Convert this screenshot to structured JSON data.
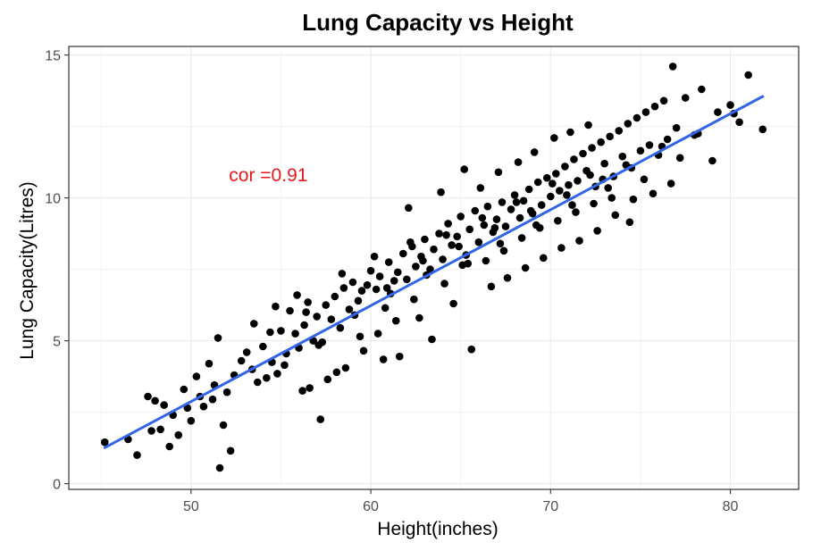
{
  "chart_data": {
    "type": "scatter",
    "title": "Lung Capacity vs Height",
    "xlabel": "Height(inches)",
    "ylabel": "Lung Capacity(Litres)",
    "xlim": [
      43.2,
      83.8
    ],
    "ylim": [
      -0.2,
      15.3
    ],
    "x_ticks": [
      50,
      60,
      70,
      80
    ],
    "y_ticks": [
      0,
      5,
      10,
      15
    ],
    "grid": true,
    "annotation": {
      "text": "cor =0.91",
      "x": 54.3,
      "y": 10.8,
      "color": "#e41a1c"
    },
    "fit_line": {
      "x": [
        45.2,
        81.8
      ],
      "y": [
        1.26,
        13.55
      ],
      "color": "#3366e6"
    },
    "point_color": "#000000",
    "series": [
      {
        "x": [
          45.2,
          47.0,
          46.5,
          47.6,
          48.0,
          48.3,
          48.8,
          49.0,
          49.3,
          49.6,
          50.0,
          50.3,
          50.7,
          51.0,
          51.2,
          51.5,
          51.6,
          51.8,
          52.0,
          52.2,
          47.8,
          48.5,
          49.8,
          50.5,
          51.3,
          52.4,
          52.8,
          53.1,
          53.4,
          53.7,
          54.0,
          54.2,
          54.5,
          54.8,
          55.0,
          55.3,
          55.5,
          55.8,
          56.0,
          56.3,
          56.5,
          56.8,
          57.0,
          57.3,
          57.5,
          57.8,
          58.0,
          58.3,
          58.5,
          58.8,
          59.0,
          59.3,
          59.5,
          59.8,
          60.0,
          60.3,
          60.5,
          60.8,
          61.0,
          61.3,
          61.5,
          61.8,
          62.0,
          62.3,
          62.5,
          62.8,
          63.0,
          63.3,
          63.5,
          63.8,
          64.0,
          64.3,
          64.5,
          64.8,
          65.0,
          65.3,
          65.5,
          65.8,
          66.0,
          66.3,
          66.5,
          66.8,
          67.0,
          67.3,
          67.5,
          67.8,
          68.0,
          68.3,
          68.5,
          68.8,
          69.0,
          69.3,
          69.5,
          69.8,
          70.0,
          70.3,
          70.5,
          70.8,
          71.0,
          71.3,
          71.5,
          71.8,
          72.0,
          72.3,
          72.5,
          72.8,
          73.0,
          73.3,
          73.5,
          73.8,
          74.0,
          74.3,
          74.5,
          74.8,
          75.0,
          75.3,
          75.5,
          75.8,
          76.0,
          76.3,
          76.5,
          76.8,
          77.0,
          77.5,
          78.0,
          78.4,
          79.0,
          79.3,
          80.0,
          80.5,
          81.0,
          81.8,
          53.5,
          54.7,
          55.9,
          56.6,
          57.2,
          58.1,
          59.4,
          60.7,
          61.6,
          62.7,
          63.4,
          64.6,
          65.6,
          66.7,
          67.6,
          68.6,
          69.6,
          70.6,
          71.6,
          72.6,
          73.6,
          74.6,
          75.7,
          76.7,
          62.1,
          63.9,
          65.2,
          66.1,
          67.1,
          68.2,
          69.1,
          70.2,
          71.1,
          72.1,
          56.2,
          57.6,
          58.6,
          59.6,
          60.4,
          61.4,
          62.4,
          64.1,
          65.1,
          66.4,
          67.4,
          68.4,
          69.4,
          70.4,
          71.4,
          72.4,
          73.4,
          74.4,
          55.2,
          57.1,
          59.1,
          61.1,
          63.1,
          65.4,
          67.2,
          69.2,
          71.2,
          73.2,
          75.2,
          77.2,
          54.4,
          56.4,
          58.4,
          60.2,
          62.2,
          64.2,
          66.2,
          68.1,
          70.1,
          72.2,
          74.2,
          76.2,
          78.2,
          80.2,
          60.9,
          62.9,
          64.9,
          66.9,
          68.9,
          70.9,
          72.9
        ],
        "y": [
          1.45,
          1.0,
          1.55,
          3.05,
          2.9,
          1.9,
          1.3,
          2.4,
          1.7,
          3.3,
          2.2,
          3.75,
          2.7,
          4.2,
          2.95,
          5.1,
          0.55,
          2.05,
          3.2,
          1.15,
          1.85,
          2.75,
          2.65,
          3.05,
          3.45,
          3.8,
          4.3,
          4.6,
          4.0,
          3.55,
          4.8,
          3.7,
          4.25,
          3.85,
          5.35,
          4.55,
          6.05,
          5.25,
          4.75,
          5.55,
          6.35,
          5.0,
          5.85,
          4.95,
          6.25,
          5.75,
          6.55,
          5.45,
          6.85,
          6.1,
          7.05,
          6.4,
          6.75,
          6.95,
          7.45,
          6.8,
          7.25,
          6.15,
          7.75,
          7.1,
          7.4,
          8.05,
          7.15,
          8.3,
          7.6,
          7.95,
          8.55,
          7.5,
          8.2,
          8.75,
          7.85,
          9.1,
          8.35,
          8.65,
          9.35,
          8.0,
          8.9,
          9.55,
          8.45,
          9.05,
          9.7,
          8.8,
          9.25,
          9.85,
          9.0,
          9.6,
          10.1,
          9.3,
          9.9,
          10.3,
          9.45,
          10.55,
          9.75,
          10.7,
          10.05,
          10.85,
          10.25,
          11.1,
          10.45,
          11.35,
          10.6,
          11.55,
          10.95,
          11.75,
          10.4,
          11.95,
          11.2,
          12.15,
          10.75,
          12.35,
          11.45,
          12.6,
          11.05,
          12.8,
          11.65,
          13.0,
          11.85,
          13.2,
          11.5,
          13.4,
          12.05,
          14.6,
          12.45,
          13.5,
          12.2,
          13.8,
          11.3,
          13.0,
          13.25,
          12.65,
          14.3,
          12.4,
          5.6,
          6.2,
          6.6,
          3.35,
          2.25,
          3.9,
          5.15,
          4.35,
          4.45,
          5.8,
          5.05,
          6.3,
          4.7,
          6.9,
          7.2,
          7.55,
          7.9,
          8.25,
          8.5,
          8.85,
          9.4,
          9.95,
          10.15,
          10.5,
          9.65,
          10.2,
          11.0,
          10.35,
          10.9,
          11.25,
          11.6,
          12.1,
          12.3,
          12.55,
          3.25,
          3.65,
          4.05,
          4.65,
          5.25,
          5.7,
          6.45,
          7.0,
          7.65,
          7.8,
          8.15,
          8.6,
          8.95,
          9.2,
          9.5,
          9.8,
          10.0,
          9.15,
          4.15,
          4.85,
          5.9,
          6.65,
          7.3,
          7.7,
          8.4,
          9.05,
          9.75,
          10.35,
          10.65,
          11.4,
          5.3,
          6.0,
          7.35,
          7.95,
          8.45,
          8.7,
          9.3,
          9.85,
          10.5,
          10.8,
          11.15,
          11.8,
          12.25,
          12.95,
          6.85,
          7.8,
          8.3,
          8.95,
          9.55,
          10.1,
          10.65
        ]
      }
    ]
  }
}
